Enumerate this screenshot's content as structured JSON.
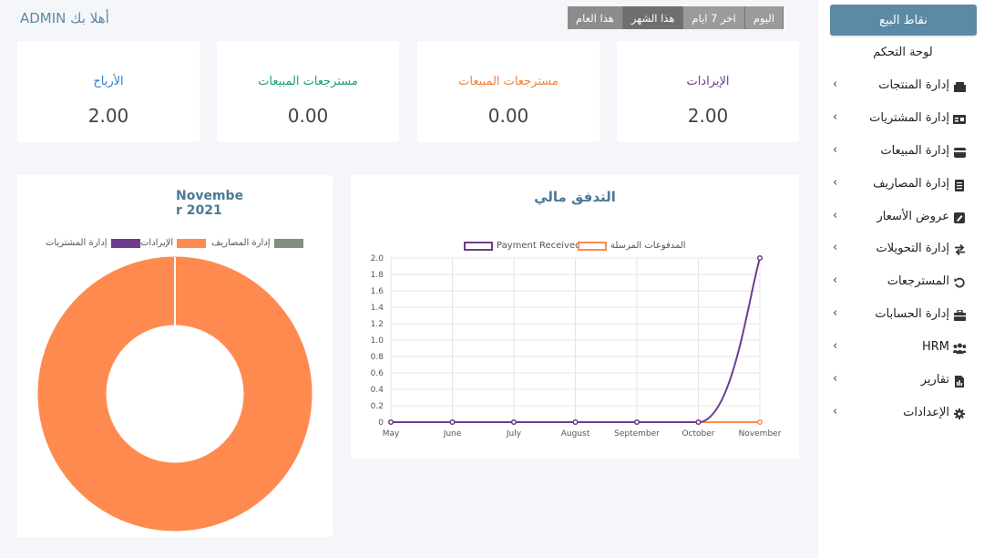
{
  "header": {
    "welcome": "أهلا بك ADMIN",
    "periods": [
      "اليوم",
      "اخر 7 ايام",
      "هذا الشهر",
      "هذا العام"
    ],
    "active_period": "هذا الشهر"
  },
  "sidebar": {
    "pos_button": "نقاط البيع",
    "dashboard": "لوحة التحكم",
    "items": [
      {
        "label": "إدارة المنتجات",
        "icon": "products-icon"
      },
      {
        "label": "إدارة المشتريات",
        "icon": "purchases-icon"
      },
      {
        "label": "إدارة المبيعات",
        "icon": "sales-icon"
      },
      {
        "label": "إدارة المصاريف",
        "icon": "expenses-icon"
      },
      {
        "label": "عروض الأسعار",
        "icon": "quotations-icon"
      },
      {
        "label": "إدارة التحويلات",
        "icon": "transfers-icon"
      },
      {
        "label": "المسترجعات",
        "icon": "returns-icon"
      },
      {
        "label": "إدارة الحسابات",
        "icon": "accounts-icon"
      },
      {
        "label": "HRM",
        "icon": "hrm-icon"
      },
      {
        "label": "تقارير",
        "icon": "reports-icon"
      },
      {
        "label": "الإعدادات",
        "icon": "settings-icon"
      }
    ]
  },
  "cards": [
    {
      "title": "الإيرادات",
      "value": "2.00",
      "color": "#6f3c8c"
    },
    {
      "title": "مسترجعات المبيعات",
      "value": "0.00",
      "color": "#f0803c"
    },
    {
      "title": "مسترجعات المبيعات",
      "value": "0.00",
      "color": "#1aa36b"
    },
    {
      "title": "الأرباح",
      "value": "2.00",
      "color": "#2c7bd3"
    }
  ],
  "colors": {
    "accent": "#5b89a6",
    "purple": "#6f3c8c",
    "orange": "#ff8a50",
    "gray": "#848f80"
  },
  "chart_data": [
    {
      "type": "pie",
      "title": "November 2021",
      "legend": [
        {
          "name": "إدارة المشتريات",
          "color": "#6f3c8c"
        },
        {
          "name": "الإيرادات",
          "color": "#ff8a50"
        },
        {
          "name": "إدارة المصاريف",
          "color": "#848f80"
        }
      ],
      "values": [
        0,
        2,
        0
      ]
    },
    {
      "type": "line",
      "title": "التدفق مالي",
      "categories": [
        "May",
        "June",
        "July",
        "August",
        "September",
        "October",
        "November"
      ],
      "ylim": [
        0,
        2.0
      ],
      "yticks": [
        "0",
        "0.2",
        "0.4",
        "0.6",
        "0.8",
        "1.0",
        "1.2",
        "1.4",
        "1.6",
        "1.8",
        "2.0"
      ],
      "grid": true,
      "series": [
        {
          "name": "Payment Received",
          "color": "#6f3c8c",
          "values": [
            0,
            0,
            0,
            0,
            0,
            0,
            2
          ]
        },
        {
          "name": "المدفوعات المرسلة",
          "color": "#ff8a50",
          "values": [
            0,
            0,
            0,
            0,
            0,
            0,
            0
          ]
        }
      ]
    }
  ]
}
